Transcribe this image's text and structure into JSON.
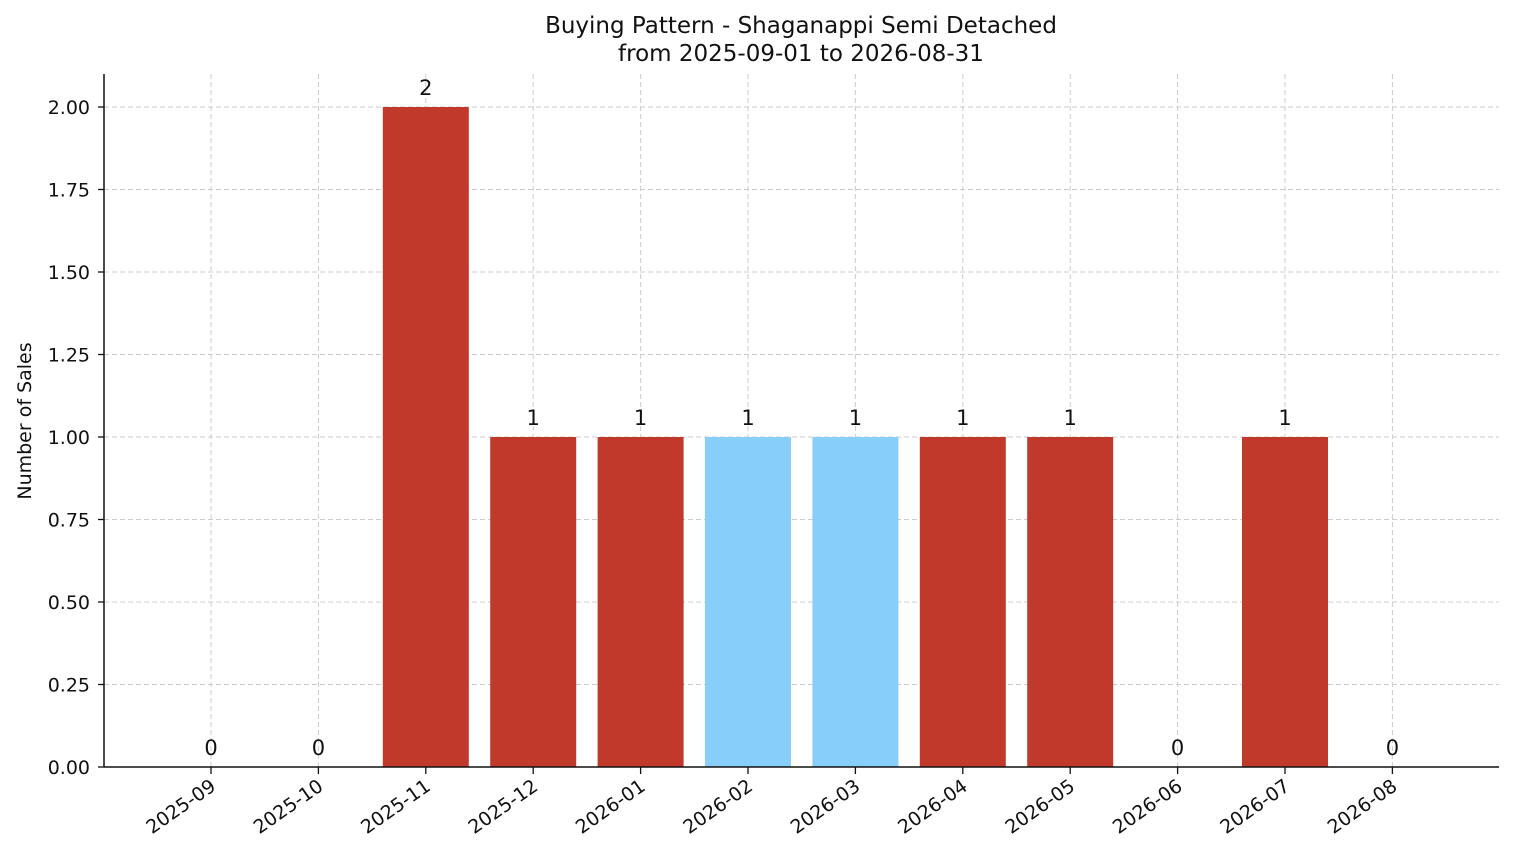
{
  "chart_data": {
    "type": "bar",
    "title": "Buying Pattern - Shaganappi Semi Detached",
    "subtitle": "from 2025-09-01 to 2026-08-31",
    "xlabel": "",
    "ylabel": "Number of Sales",
    "categories": [
      "2025-09",
      "2025-10",
      "2025-11",
      "2025-12",
      "2026-01",
      "2026-02",
      "2026-03",
      "2026-04",
      "2026-05",
      "2026-06",
      "2026-07",
      "2026-08"
    ],
    "values": [
      0,
      0,
      2,
      1,
      1,
      1,
      1,
      1,
      1,
      0,
      1,
      0
    ],
    "bar_colors": [
      "#c0392b",
      "#c0392b",
      "#c0392b",
      "#c0392b",
      "#c0392b",
      "#87cefa",
      "#87cefa",
      "#c0392b",
      "#c0392b",
      "#c0392b",
      "#c0392b",
      "#c0392b"
    ],
    "data_labels": [
      "0",
      "0",
      "2",
      "1",
      "1",
      "1",
      "1",
      "1",
      "1",
      "0",
      "1",
      "0"
    ],
    "ylim": [
      0,
      2.1
    ],
    "yticks": [
      0,
      0.25,
      0.5,
      0.75,
      1.0,
      1.25,
      1.5,
      1.75,
      2.0
    ],
    "ytick_labels": [
      "0.00",
      "0.25",
      "0.50",
      "0.75",
      "1.00",
      "1.25",
      "1.50",
      "1.75",
      "2.00"
    ],
    "grid": true,
    "legend": "none"
  }
}
